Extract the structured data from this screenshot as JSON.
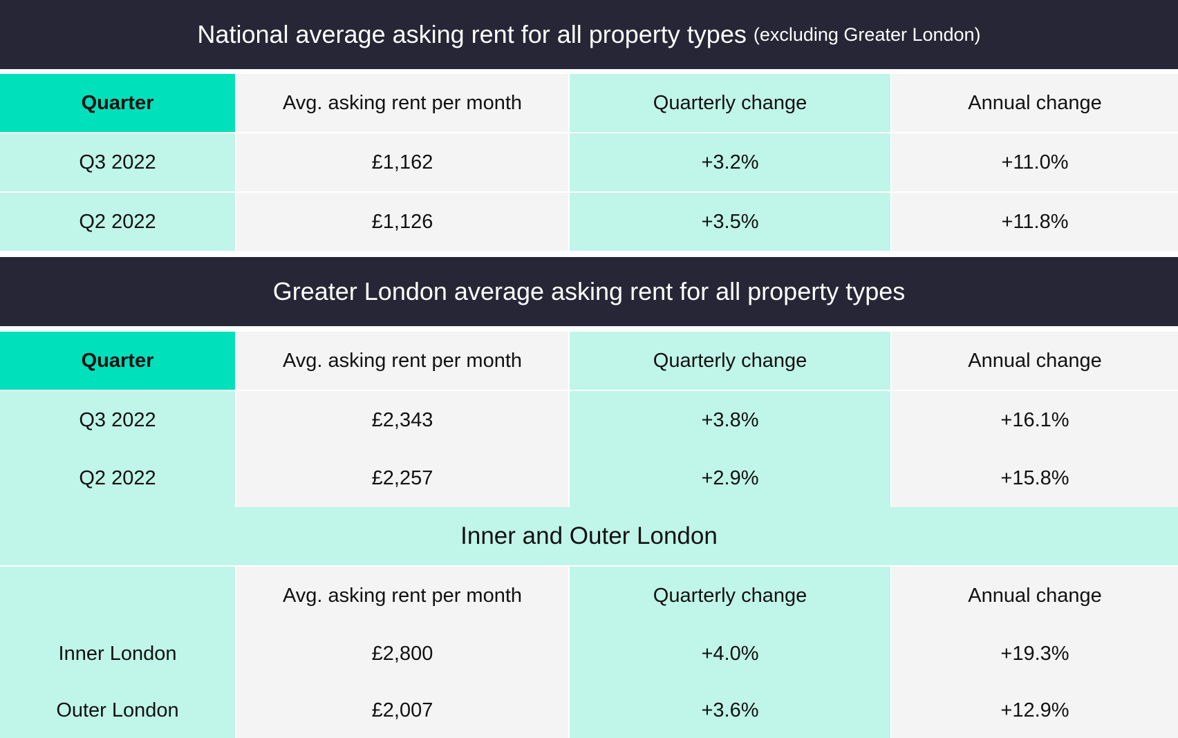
{
  "national": {
    "title": "National average asking rent for all property types",
    "title_note": "(excluding Greater London)",
    "headers": [
      "Quarter",
      "Avg. asking rent per month",
      "Quarterly change",
      "Annual change"
    ],
    "rows": [
      [
        "Q3 2022",
        "£1,162",
        "+3.2%",
        "+11.0%"
      ],
      [
        "Q2 2022",
        "£1,126",
        "+3.5%",
        "+11.8%"
      ]
    ]
  },
  "london": {
    "title": "Greater London average asking rent for all property types",
    "headers": [
      "Quarter",
      "Avg. asking rent per month",
      "Quarterly change",
      "Annual change"
    ],
    "rows": [
      [
        "Q3 2022",
        "£2,343",
        "+3.8%",
        "+16.1%"
      ],
      [
        "Q2 2022",
        "£2,257",
        "+2.9%",
        "+15.8%"
      ]
    ]
  },
  "inner_outer": {
    "title": "Inner and Outer London",
    "headers": [
      "",
      "Avg. asking rent per month",
      "Quarterly change",
      "Annual change"
    ],
    "rows": [
      [
        "Inner London",
        "£2,800",
        "+4.0%",
        "+19.3%"
      ],
      [
        "Outer London",
        "£2,007",
        "+3.6%",
        "+12.9%"
      ]
    ]
  },
  "colors": {
    "banner": "#262637",
    "accent": "#00e0bb",
    "mint": "#c0f5e9",
    "grey": "#f4f4f4"
  }
}
